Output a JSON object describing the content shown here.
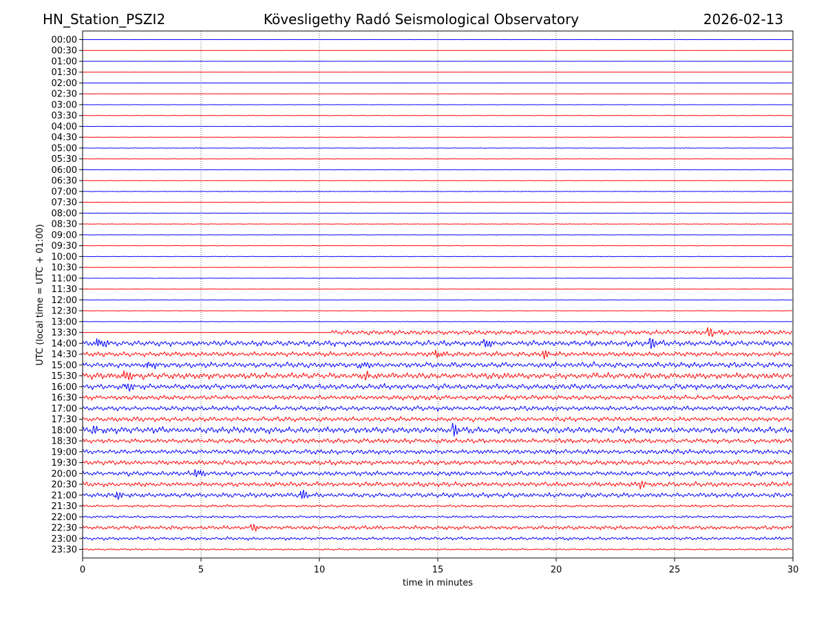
{
  "header": {
    "station": "HN_Station_PSZI2",
    "observatory": "Kövesligethy Radó Seismological Observatory",
    "date": "2026-02-13"
  },
  "chart_data": {
    "type": "line",
    "title": "Kövesligethy Radó Seismological Observatory",
    "xlabel": "time in minutes",
    "ylabel": "UTC (local time = UTC + 01:00)",
    "xlim": [
      0,
      30
    ],
    "xticks": [
      "0",
      "5",
      "10",
      "15",
      "20",
      "25",
      "30"
    ],
    "xtick_values": [
      0,
      5,
      10,
      15,
      20,
      25,
      30
    ],
    "grid_x": true,
    "colors": [
      "#0000ff",
      "#ff0000"
    ],
    "rows": [
      "00:00",
      "00:30",
      "01:00",
      "01:30",
      "02:00",
      "02:30",
      "03:00",
      "03:30",
      "04:00",
      "04:30",
      "05:00",
      "05:30",
      "06:00",
      "06:30",
      "07:00",
      "07:30",
      "08:00",
      "08:30",
      "09:00",
      "09:30",
      "10:00",
      "10:30",
      "11:00",
      "11:30",
      "12:00",
      "12:30",
      "13:00",
      "13:30",
      "14:00",
      "14:30",
      "15:00",
      "15:30",
      "16:00",
      "16:30",
      "17:00",
      "17:30",
      "18:00",
      "18:30",
      "19:00",
      "19:30",
      "20:00",
      "20:30",
      "21:00",
      "21:30",
      "22:00",
      "22:30",
      "23:00",
      "23:30"
    ],
    "noise_level": [
      0.1,
      0.1,
      0.1,
      0.1,
      0.1,
      0.15,
      0.3,
      0.3,
      0.25,
      0.25,
      0.3,
      0.3,
      0.3,
      0.3,
      0.35,
      0.3,
      0.3,
      0.3,
      0.3,
      0.3,
      0.3,
      0.3,
      0.3,
      0.3,
      0.3,
      0.3,
      0.3,
      3,
      3.5,
      3,
      3.5,
      4,
      3.5,
      3,
      3,
      3,
      4,
      3,
      3,
      3,
      3,
      3,
      3,
      1.5,
      1.5,
      2.5,
      2,
      1
    ],
    "data_start_minute_13_30": 10.5,
    "bursts": [
      {
        "row": 28,
        "minute": 0.7,
        "amp": 9
      },
      {
        "row": 28,
        "minute": 17.0,
        "amp": 9
      },
      {
        "row": 28,
        "minute": 24.0,
        "amp": 10
      },
      {
        "row": 27,
        "minute": 26.5,
        "amp": 7
      },
      {
        "row": 29,
        "minute": 15.0,
        "amp": 7
      },
      {
        "row": 29,
        "minute": 19.5,
        "amp": 7
      },
      {
        "row": 30,
        "minute": 2.8,
        "amp": 7
      },
      {
        "row": 30,
        "minute": 11.8,
        "amp": 7
      },
      {
        "row": 31,
        "minute": 1.8,
        "amp": 9
      },
      {
        "row": 31,
        "minute": 12.0,
        "amp": 6
      },
      {
        "row": 32,
        "minute": 1.9,
        "amp": 7
      },
      {
        "row": 36,
        "minute": 0.5,
        "amp": 7
      },
      {
        "row": 36,
        "minute": 15.7,
        "amp": 8
      },
      {
        "row": 40,
        "minute": 4.8,
        "amp": 8
      },
      {
        "row": 41,
        "minute": 23.6,
        "amp": 6
      },
      {
        "row": 42,
        "minute": 1.5,
        "amp": 6
      },
      {
        "row": 42,
        "minute": 9.3,
        "amp": 8
      },
      {
        "row": 45,
        "minute": 7.2,
        "amp": 5
      }
    ]
  }
}
